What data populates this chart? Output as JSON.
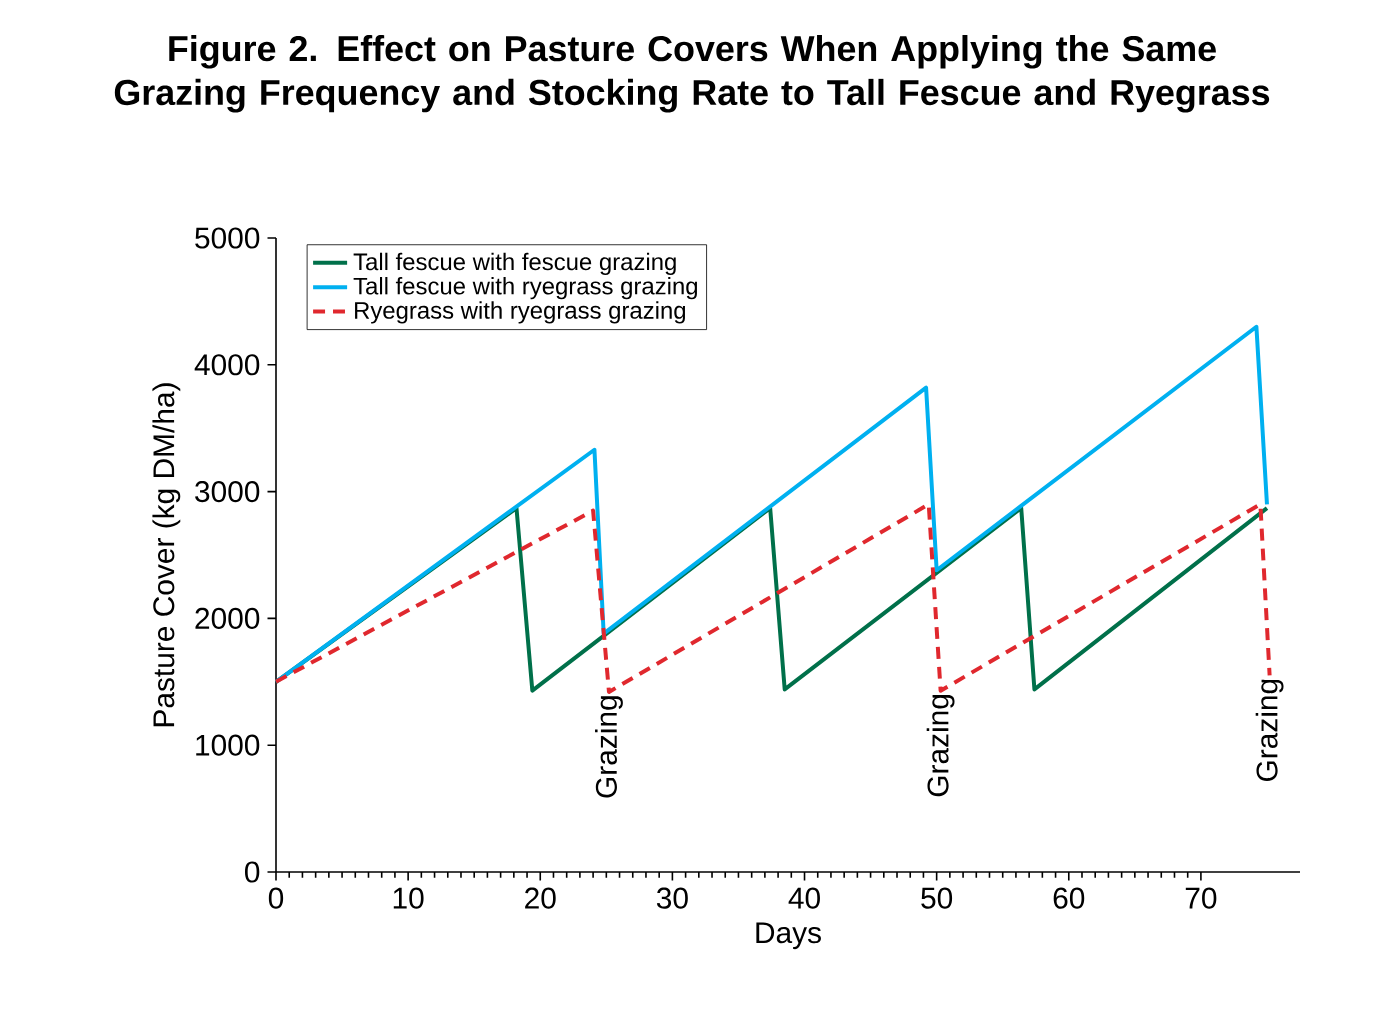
{
  "chart_data": {
    "type": "line",
    "title": "Figure 2. Effect on Pasture Covers When Applying the Same Grazing Frequency and Stocking Rate to Tall Fescue and Ryegrass",
    "xlabel": "Days",
    "ylabel": "Pasture Cover (kg DM/ha)",
    "xlim": [
      0,
      77.5
    ],
    "ylim": [
      0,
      5000
    ],
    "xticks": [
      0,
      10,
      20,
      30,
      40,
      50,
      60,
      70
    ],
    "yticks": [
      0,
      1000,
      2000,
      3000,
      4000,
      5000
    ],
    "legend": "top left",
    "grid": false,
    "series": [
      {
        "name": "Tall fescue with fescue grazing",
        "color": "#00704a",
        "line_style": "solid",
        "x": [
          0,
          18.2,
          19.4,
          37.4,
          38.5,
          56.4,
          57.4,
          75
        ],
        "values": [
          1500,
          2870,
          1430,
          2870,
          1440,
          2870,
          1440,
          2870
        ]
      },
      {
        "name": "Tall fescue with ryegrass grazing",
        "color": "#00b0f0",
        "line_style": "solid",
        "x": [
          0,
          24.1,
          24.8,
          49.2,
          50,
          74.2,
          75
        ],
        "values": [
          1500,
          3330,
          1880,
          3820,
          2380,
          4300,
          2900
        ]
      },
      {
        "name": "Ryegrass with ryegrass grazing",
        "color": "#e0282e",
        "line_style": "dashed",
        "x": [
          0,
          24,
          25.2,
          49.4,
          50.3,
          74.5,
          75.2
        ],
        "values": [
          1500,
          2850,
          1420,
          2900,
          1430,
          2900,
          1550
        ]
      }
    ],
    "annotations": [
      {
        "text": "Grazing",
        "x": 25.2,
        "y": 1420
      },
      {
        "text": "Grazing",
        "x": 50.3,
        "y": 1430
      },
      {
        "text": "Grazing",
        "x": 75.2,
        "y": 1550
      }
    ]
  }
}
